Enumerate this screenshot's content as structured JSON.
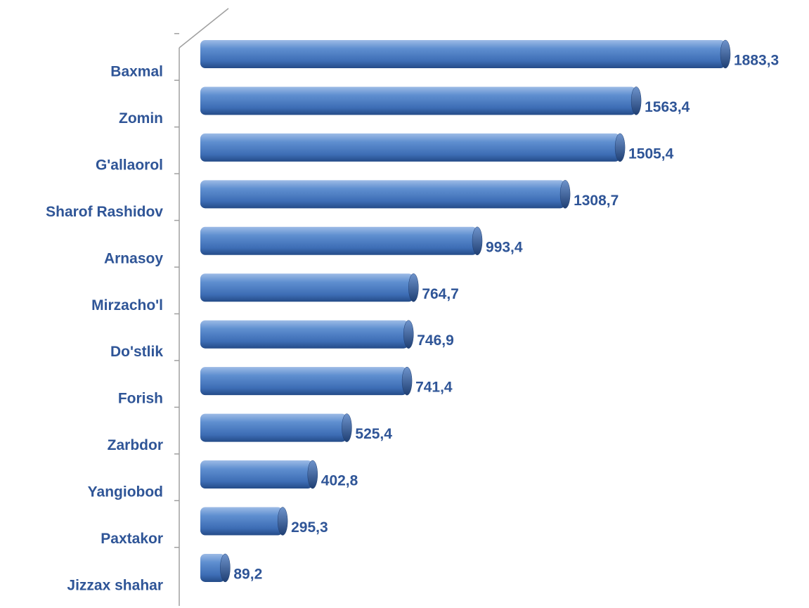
{
  "chart_data": {
    "type": "bar",
    "orientation": "horizontal",
    "categories": [
      "Baxmal",
      "Zomin",
      "G'allaorol",
      "Sharof Rashidov",
      "Arnasoy",
      "Mirzacho'l",
      "Do'stlik",
      "Forish",
      "Zarbdor",
      "Yangiobod",
      "Paxtakor",
      "Jizzax shahar"
    ],
    "values": [
      1883.3,
      1563.4,
      1505.4,
      1308.7,
      993.4,
      764.7,
      746.9,
      741.4,
      525.4,
      402.8,
      295.3,
      89.2
    ],
    "value_labels": [
      "1883,3",
      "1563,4",
      "1505,4",
      "1308,7",
      "993,4",
      "764,7",
      "746,9",
      "741,4",
      "525,4",
      "402,8",
      "295,3",
      "89,2"
    ],
    "color": "#4f81bd"
  }
}
